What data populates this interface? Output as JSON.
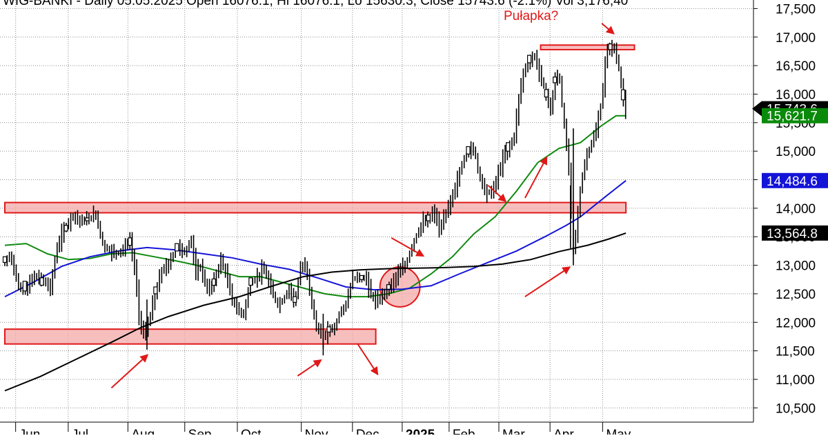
{
  "chart_data": {
    "type": "candlestick",
    "header": "WIG-BANKI - Daily 05.05.2025 Open 16076.1, Hi 16076.1, Lo 15630.3, Close 15743.6 (-2.1%) Vol 3,176,40",
    "annotations": {
      "trap": "Pułapka?"
    },
    "y_axis": {
      "ticks": [
        "10,500",
        "11,000",
        "11,500",
        "12,000",
        "12,500",
        "13,000",
        "13,500",
        "14,000",
        "14,500",
        "15,000",
        "15,500",
        "16,000",
        "16,500",
        "17,000",
        "17,500"
      ],
      "tick_values": [
        10500,
        11000,
        11500,
        12000,
        12500,
        13000,
        13500,
        14000,
        14500,
        15000,
        15500,
        16000,
        16500,
        17000,
        17500
      ],
      "ylim": [
        10250,
        17650
      ]
    },
    "x_axis": {
      "labels": [
        "Jun",
        "Jul",
        "Aug",
        "Sep",
        "Oct",
        "Nov",
        "Dec",
        "2025",
        "Feb",
        "Mar",
        "Apr",
        "May"
      ],
      "label_days": [
        11,
        48,
        90,
        130,
        167,
        212,
        248,
        283,
        316,
        351,
        387,
        424
      ],
      "day_range": [
        0,
        435
      ],
      "bold_label": "2025"
    },
    "price_badges": [
      {
        "label": "15,743.6",
        "value": 15743.6,
        "color": "#000000",
        "pointer": true
      },
      {
        "label": "15,621.7",
        "value": 15621.7,
        "color": "#0a8a0a"
      },
      {
        "label": "14,484.6",
        "value": 14484.6,
        "color": "#1414d8"
      },
      {
        "label": "13,564.8",
        "value": 13564.8,
        "color": "#000000"
      }
    ],
    "price_path": [
      [
        0,
        13050
      ],
      [
        4,
        13200
      ],
      [
        9,
        12650
      ],
      [
        14,
        12530
      ],
      [
        20,
        12800
      ],
      [
        26,
        12760
      ],
      [
        32,
        12600
      ],
      [
        37,
        13350
      ],
      [
        43,
        13700
      ],
      [
        48,
        13880
      ],
      [
        53,
        13770
      ],
      [
        58,
        13800
      ],
      [
        64,
        13900
      ],
      [
        69,
        13350
      ],
      [
        74,
        13250
      ],
      [
        79,
        13200
      ],
      [
        84,
        13300
      ],
      [
        88,
        13450
      ],
      [
        92,
        12800
      ],
      [
        95,
        11980
      ],
      [
        98,
        11780
      ],
      [
        100,
        11900
      ],
      [
        103,
        12200
      ],
      [
        106,
        12500
      ],
      [
        110,
        12900
      ],
      [
        115,
        13000
      ],
      [
        121,
        13350
      ],
      [
        127,
        13200
      ],
      [
        131,
        13500
      ],
      [
        134,
        12850
      ],
      [
        138,
        13000
      ],
      [
        142,
        12550
      ],
      [
        147,
        12700
      ],
      [
        152,
        13100
      ],
      [
        156,
        12800
      ],
      [
        160,
        12400
      ],
      [
        164,
        12200
      ],
      [
        168,
        12150
      ],
      [
        173,
        12700
      ],
      [
        178,
        12800
      ],
      [
        182,
        12950
      ],
      [
        187,
        12600
      ],
      [
        192,
        12300
      ],
      [
        196,
        12400
      ],
      [
        200,
        12600
      ],
      [
        204,
        12350
      ],
      [
        208,
        12950
      ],
      [
        212,
        13000
      ],
      [
        216,
        12300
      ],
      [
        220,
        11850
      ],
      [
        224,
        11750
      ],
      [
        228,
        11880
      ],
      [
        232,
        11900
      ],
      [
        236,
        12200
      ],
      [
        240,
        12300
      ],
      [
        244,
        12750
      ],
      [
        248,
        12800
      ],
      [
        251,
        12750
      ],
      [
        254,
        12800
      ],
      [
        258,
        12450
      ],
      [
        262,
        12350
      ],
      [
        266,
        12500
      ],
      [
        270,
        12600
      ],
      [
        274,
        12750
      ],
      [
        278,
        12900
      ],
      [
        282,
        13000
      ],
      [
        286,
        13300
      ],
      [
        290,
        13550
      ],
      [
        294,
        13750
      ],
      [
        298,
        13800
      ],
      [
        302,
        13950
      ],
      [
        306,
        13600
      ],
      [
        310,
        13900
      ],
      [
        314,
        14150
      ],
      [
        318,
        14450
      ],
      [
        322,
        14800
      ],
      [
        326,
        15000
      ],
      [
        330,
        15050
      ],
      [
        334,
        14550
      ],
      [
        338,
        14300
      ],
      [
        342,
        14250
      ],
      [
        346,
        14500
      ],
      [
        350,
        14850
      ],
      [
        354,
        15050
      ],
      [
        358,
        15200
      ],
      [
        362,
        16000
      ],
      [
        365,
        16400
      ],
      [
        369,
        16550
      ],
      [
        372,
        16700
      ],
      [
        375,
        16500
      ],
      [
        378,
        16200
      ],
      [
        381,
        16000
      ],
      [
        384,
        15700
      ],
      [
        387,
        16250
      ],
      [
        390,
        16350
      ],
      [
        393,
        15550
      ],
      [
        396,
        14950
      ],
      [
        398,
        14200
      ],
      [
        400,
        13350
      ],
      [
        402,
        13600
      ],
      [
        405,
        14350
      ],
      [
        408,
        14800
      ],
      [
        412,
        15100
      ],
      [
        416,
        15350
      ],
      [
        420,
        15900
      ],
      [
        423,
        16700
      ],
      [
        426,
        16850
      ],
      [
        429,
        16780
      ],
      [
        432,
        16450
      ],
      [
        435,
        15900
      ],
      [
        437,
        15743.6
      ]
    ],
    "candle_bodies": [
      [
        0,
        13050,
        13150
      ],
      [
        14,
        12550,
        12720
      ],
      [
        26,
        12780,
        12650
      ],
      [
        43,
        13700,
        13600
      ],
      [
        58,
        13780,
        13830
      ],
      [
        88,
        13350,
        13480
      ],
      [
        106,
        12500,
        12620
      ],
      [
        121,
        13250,
        13380
      ],
      [
        147,
        12650,
        12760
      ],
      [
        173,
        12650,
        12780
      ],
      [
        204,
        12350,
        12450
      ],
      [
        228,
        11830,
        11920
      ],
      [
        251,
        12750,
        12820
      ],
      [
        270,
        12580,
        12660
      ],
      [
        298,
        13780,
        13880
      ],
      [
        326,
        14950,
        15080
      ],
      [
        354,
        15000,
        15150
      ],
      [
        369,
        16550,
        16680
      ],
      [
        381,
        15950,
        16080
      ],
      [
        387,
        16200,
        16300
      ],
      [
        426,
        16780,
        16880
      ],
      [
        435,
        15900,
        16076.1
      ]
    ],
    "series": [
      {
        "name": "",
        "color": "#0f8a0f",
        "points": [
          [
            0,
            13350
          ],
          [
            15,
            13380
          ],
          [
            30,
            13200
          ],
          [
            45,
            13100
          ],
          [
            60,
            13120
          ],
          [
            75,
            13200
          ],
          [
            90,
            13220
          ],
          [
            105,
            13150
          ],
          [
            120,
            13080
          ],
          [
            135,
            13000
          ],
          [
            150,
            12900
          ],
          [
            165,
            12800
          ],
          [
            180,
            12800
          ],
          [
            195,
            12700
          ],
          [
            210,
            12600
          ],
          [
            225,
            12500
          ],
          [
            240,
            12450
          ],
          [
            255,
            12450
          ],
          [
            270,
            12500
          ],
          [
            285,
            12600
          ],
          [
            300,
            12850
          ],
          [
            315,
            13150
          ],
          [
            330,
            13550
          ],
          [
            345,
            13850
          ],
          [
            360,
            14300
          ],
          [
            375,
            14800
          ],
          [
            390,
            15050
          ],
          [
            405,
            15150
          ],
          [
            420,
            15450
          ],
          [
            430,
            15620
          ],
          [
            437,
            15621.7
          ]
        ]
      },
      {
        "name": "",
        "color": "#1414d8",
        "points": [
          [
            0,
            12450
          ],
          [
            20,
            12700
          ],
          [
            40,
            12980
          ],
          [
            60,
            13150
          ],
          [
            80,
            13250
          ],
          [
            100,
            13310
          ],
          [
            120,
            13270
          ],
          [
            140,
            13200
          ],
          [
            160,
            13130
          ],
          [
            180,
            13020
          ],
          [
            200,
            12930
          ],
          [
            220,
            12780
          ],
          [
            240,
            12620
          ],
          [
            260,
            12570
          ],
          [
            280,
            12580
          ],
          [
            300,
            12640
          ],
          [
            320,
            12850
          ],
          [
            340,
            13050
          ],
          [
            360,
            13250
          ],
          [
            380,
            13500
          ],
          [
            395,
            13700
          ],
          [
            405,
            13850
          ],
          [
            415,
            14050
          ],
          [
            425,
            14250
          ],
          [
            437,
            14484.6
          ]
        ]
      },
      {
        "name": "",
        "color": "#000000",
        "points": [
          [
            0,
            10800
          ],
          [
            25,
            11050
          ],
          [
            50,
            11350
          ],
          [
            75,
            11650
          ],
          [
            95,
            11900
          ],
          [
            115,
            12100
          ],
          [
            140,
            12300
          ],
          [
            165,
            12450
          ],
          [
            190,
            12650
          ],
          [
            210,
            12800
          ],
          [
            230,
            12880
          ],
          [
            250,
            12920
          ],
          [
            270,
            12940
          ],
          [
            290,
            12950
          ],
          [
            310,
            12960
          ],
          [
            330,
            12980
          ],
          [
            350,
            13020
          ],
          [
            370,
            13100
          ],
          [
            390,
            13240
          ],
          [
            410,
            13350
          ],
          [
            425,
            13460
          ],
          [
            437,
            13564.8
          ]
        ]
      }
    ],
    "zones": [
      {
        "d0": 0,
        "d1": 437,
        "y0": 13920,
        "y1": 14100
      },
      {
        "d0": 0,
        "d1": 261,
        "y0": 11620,
        "y1": 11880
      },
      {
        "d0": 377,
        "d1": 443,
        "y0": 16780,
        "y1": 16860
      }
    ],
    "highlight_circle": {
      "d": 278,
      "value": 12620,
      "radius_value": 350
    },
    "arrows": [
      {
        "d0": 75,
        "v0": 10850,
        "d1": 100,
        "v1": 11420
      },
      {
        "d0": 206,
        "v0": 11060,
        "d1": 222,
        "v1": 11330
      },
      {
        "d0": 248,
        "v0": 11630,
        "d1": 262,
        "v1": 11100
      },
      {
        "d0": 272,
        "v0": 13480,
        "d1": 294,
        "v1": 13170
      },
      {
        "d0": 340,
        "v0": 14400,
        "d1": 352,
        "v1": 14130
      },
      {
        "d0": 366,
        "v0": 14180,
        "d1": 381,
        "v1": 14880
      },
      {
        "d0": 366,
        "v0": 12450,
        "d1": 397,
        "v1": 12960
      },
      {
        "d0": 420,
        "v0": 17240,
        "d1": 428,
        "v1": 17070
      }
    ]
  }
}
